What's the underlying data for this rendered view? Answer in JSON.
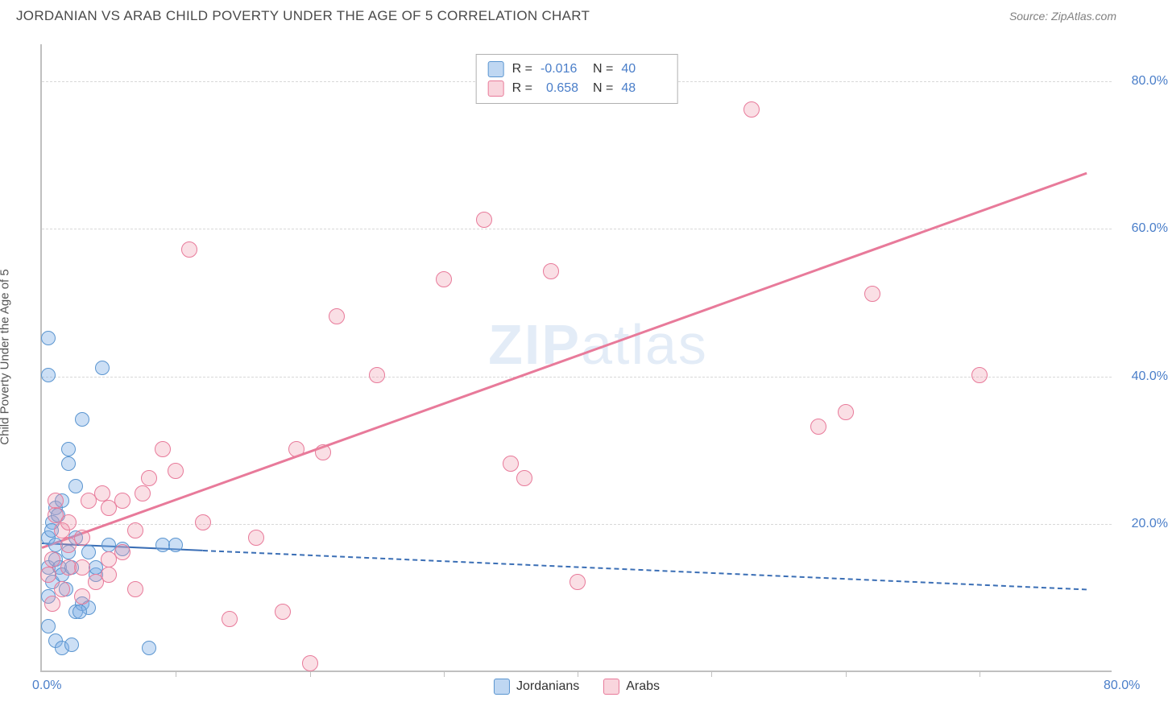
{
  "header": {
    "title": "JORDANIAN VS ARAB CHILD POVERTY UNDER THE AGE OF 5 CORRELATION CHART",
    "source": "Source: ZipAtlas.com"
  },
  "chart": {
    "type": "scatter",
    "y_label": "Child Poverty Under the Age of 5",
    "watermark": "ZIPatlas",
    "background_color": "#ffffff",
    "grid_color": "#d8d8d8",
    "axis_color": "#c0c0c0",
    "tick_label_color": "#4a7ec9",
    "tick_fontsize": 16,
    "y_label_fontsize": 15,
    "xlim": [
      0,
      80
    ],
    "ylim": [
      0,
      85
    ],
    "x_ticks": [
      {
        "value": 0,
        "label": "0.0%"
      },
      {
        "value": 80,
        "label": "80.0%"
      }
    ],
    "x_tick_marks": [
      10,
      20,
      30,
      40,
      50,
      60,
      70
    ],
    "y_ticks": [
      {
        "value": 20,
        "label": "20.0%"
      },
      {
        "value": 40,
        "label": "40.0%"
      },
      {
        "value": 60,
        "label": "60.0%"
      },
      {
        "value": 80,
        "label": "80.0%"
      }
    ],
    "series": [
      {
        "name": "Jordanians",
        "marker_color_fill": "rgba(127,176,230,0.4)",
        "marker_color_stroke": "#5a95d0",
        "marker_radius": 9,
        "trend_color": "#3a6eb5",
        "trend_solid_xrange": [
          0,
          12
        ],
        "trend_dash_xrange": [
          12,
          78
        ],
        "trend": {
          "slope": -0.08,
          "intercept": 17.5
        },
        "R": "-0.016",
        "N": "40",
        "points": [
          [
            0.5,
            18
          ],
          [
            0.8,
            20
          ],
          [
            1,
            22
          ],
          [
            1.2,
            21
          ],
          [
            0.7,
            19
          ],
          [
            1.5,
            23
          ],
          [
            0.5,
            14
          ],
          [
            1,
            15
          ],
          [
            1.3,
            14
          ],
          [
            2,
            16
          ],
          [
            2.5,
            18
          ],
          [
            0.8,
            12
          ],
          [
            1.5,
            13
          ],
          [
            2.2,
            14
          ],
          [
            0.5,
            10
          ],
          [
            1.8,
            11
          ],
          [
            2.5,
            8
          ],
          [
            3,
            9
          ],
          [
            3.5,
            8.5
          ],
          [
            0.5,
            6
          ],
          [
            1,
            4
          ],
          [
            1.5,
            3
          ],
          [
            2.2,
            3.5
          ],
          [
            2,
            30
          ],
          [
            2.5,
            25
          ],
          [
            0.5,
            45
          ],
          [
            0.5,
            40
          ],
          [
            3,
            34
          ],
          [
            4.5,
            41
          ],
          [
            8,
            3
          ],
          [
            2.8,
            8
          ],
          [
            2,
            28
          ],
          [
            1,
            17
          ],
          [
            3.5,
            16
          ],
          [
            5,
            17
          ],
          [
            6,
            16.5
          ],
          [
            9,
            17
          ],
          [
            10,
            17
          ],
          [
            4,
            13
          ],
          [
            4,
            14
          ]
        ]
      },
      {
        "name": "Arabs",
        "marker_color_fill": "rgba(240,150,170,0.3)",
        "marker_color_stroke": "#e87a9a",
        "marker_radius": 10,
        "trend_color": "#e87a9a",
        "trend_solid_xrange": [
          0,
          78
        ],
        "trend": {
          "slope": 0.65,
          "intercept": 17
        },
        "R": "0.658",
        "N": "48",
        "points": [
          [
            1,
            21
          ],
          [
            1.5,
            19
          ],
          [
            2,
            20
          ],
          [
            0.8,
            15
          ],
          [
            2,
            14
          ],
          [
            3,
            10
          ],
          [
            4,
            12
          ],
          [
            5,
            15
          ],
          [
            6,
            16
          ],
          [
            7,
            19
          ],
          [
            5,
            22
          ],
          [
            6,
            23
          ],
          [
            8,
            26
          ],
          [
            10,
            27
          ],
          [
            7,
            11
          ],
          [
            12,
            20
          ],
          [
            14,
            7
          ],
          [
            16,
            18
          ],
          [
            18,
            8
          ],
          [
            20,
            1
          ],
          [
            9,
            30
          ],
          [
            11,
            57
          ],
          [
            19,
            30
          ],
          [
            21,
            29.5
          ],
          [
            22,
            48
          ],
          [
            25,
            40
          ],
          [
            30,
            53
          ],
          [
            33,
            61
          ],
          [
            35,
            28
          ],
          [
            36,
            26
          ],
          [
            38,
            54
          ],
          [
            40,
            12
          ],
          [
            53,
            76
          ],
          [
            58,
            33
          ],
          [
            60,
            35
          ],
          [
            62,
            51
          ],
          [
            70,
            40
          ],
          [
            3.5,
            23
          ],
          [
            4.5,
            24
          ],
          [
            7.5,
            24
          ],
          [
            1,
            23
          ],
          [
            2,
            17
          ],
          [
            3,
            18
          ],
          [
            0.5,
            13
          ],
          [
            3,
            14
          ],
          [
            5,
            13
          ],
          [
            1.5,
            11
          ],
          [
            0.8,
            9
          ]
        ]
      }
    ],
    "legend": {
      "bottom_items": [
        "Jordanians",
        "Arabs"
      ]
    }
  }
}
